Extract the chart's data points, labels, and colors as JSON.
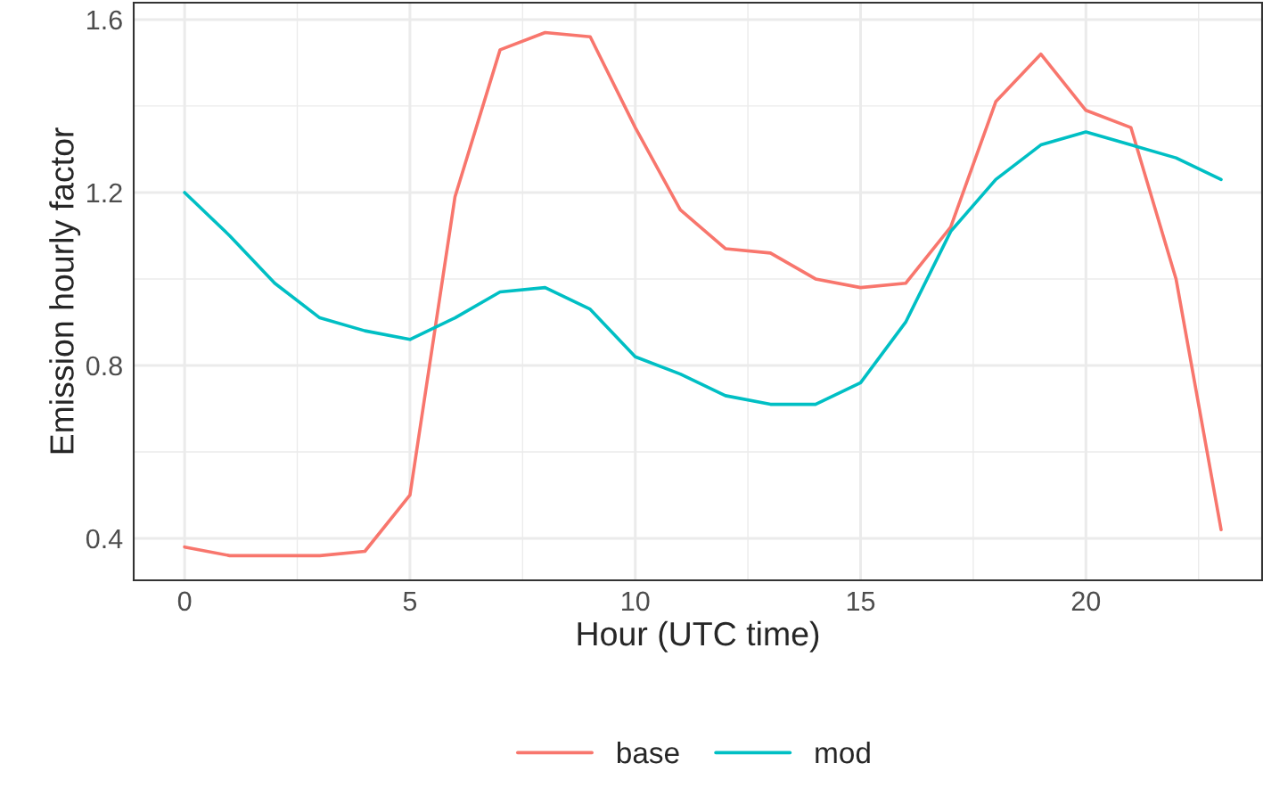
{
  "chart_data": {
    "type": "line",
    "xlabel": "Hour (UTC time)",
    "ylabel": "Emission hourly factor",
    "x": [
      0,
      1,
      2,
      3,
      4,
      5,
      6,
      7,
      8,
      9,
      10,
      11,
      12,
      13,
      14,
      15,
      16,
      17,
      18,
      19,
      20,
      21,
      22,
      23
    ],
    "series": [
      {
        "name": "base",
        "color": "#f8766d",
        "values": [
          0.38,
          0.36,
          0.36,
          0.36,
          0.37,
          0.5,
          1.19,
          1.53,
          1.57,
          1.56,
          1.35,
          1.16,
          1.07,
          1.06,
          1.0,
          0.98,
          0.99,
          1.12,
          1.41,
          1.52,
          1.39,
          1.35,
          1.0,
          0.42
        ]
      },
      {
        "name": "mod",
        "color": "#00bfc4",
        "values": [
          1.2,
          1.1,
          0.99,
          0.91,
          0.88,
          0.86,
          0.91,
          0.97,
          0.98,
          0.93,
          0.82,
          0.78,
          0.73,
          0.71,
          0.71,
          0.76,
          0.9,
          1.11,
          1.23,
          1.31,
          1.34,
          1.31,
          1.28,
          1.23
        ]
      }
    ],
    "xlim": [
      -1.13,
      23.91
    ],
    "ylim": [
      0.303,
      1.639
    ],
    "xticks": [
      0,
      5,
      10,
      15,
      20
    ],
    "yticks": [
      0.4,
      0.8,
      1.2,
      1.6
    ],
    "grid": true,
    "legend": "bottom",
    "marker": "none",
    "line_style": "solid"
  }
}
